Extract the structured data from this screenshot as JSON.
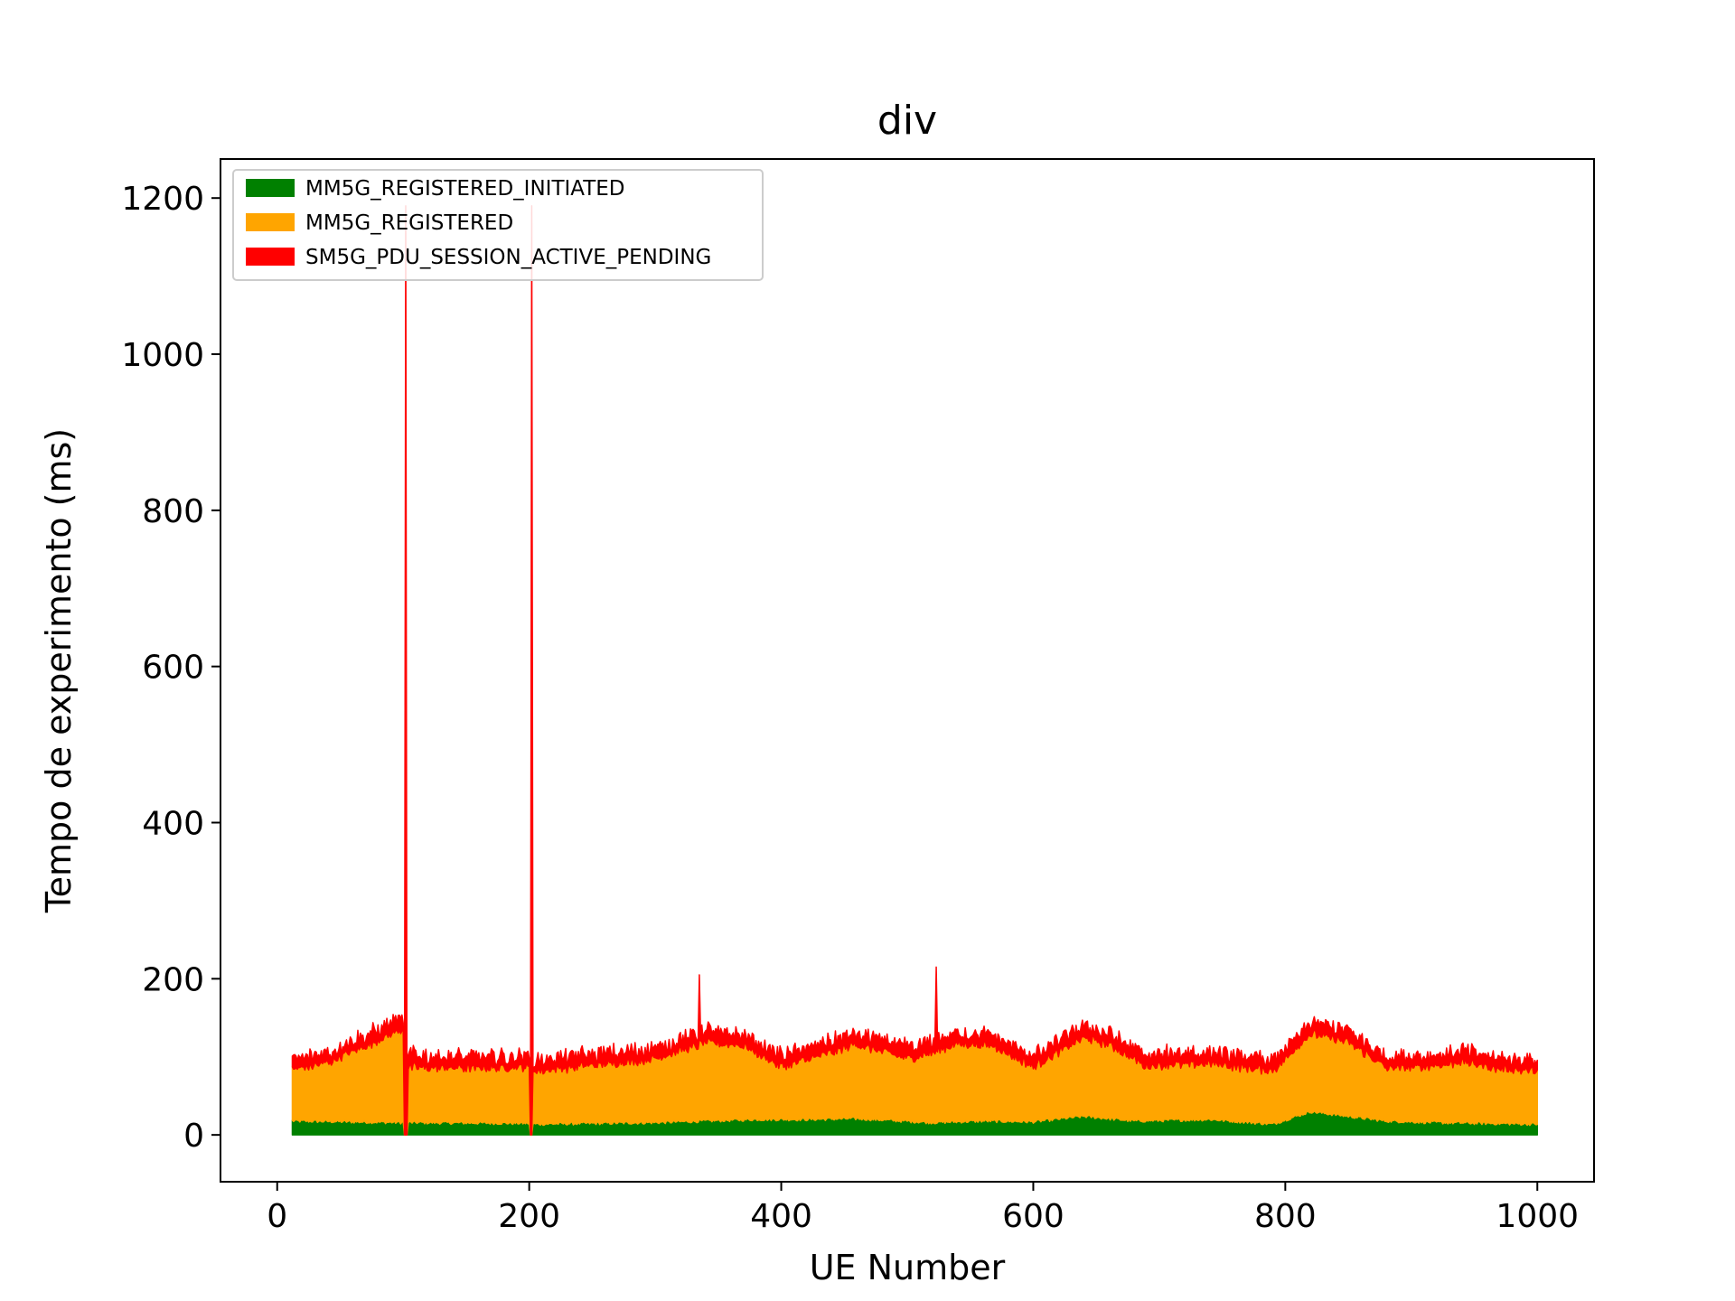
{
  "chart_data": {
    "type": "area",
    "title": "div",
    "xlabel": "UE Number",
    "ylabel": "Tempo de experimento (ms)",
    "xlim": [
      -45,
      1045
    ],
    "ylim": [
      -60,
      1250
    ],
    "xticks": [
      0,
      200,
      400,
      600,
      800,
      1000
    ],
    "yticks": [
      0,
      200,
      400,
      600,
      800,
      1000,
      1200
    ],
    "legend_position": "top-left",
    "grid": false,
    "stacked": true,
    "x_range": [
      12,
      1000
    ],
    "series": [
      {
        "name": "MM5G_REGISTERED_INITIATED",
        "color": "#008000",
        "profile": [
          [
            12,
            18
          ],
          [
            100,
            16
          ],
          [
            101,
            0
          ],
          [
            103,
            0
          ],
          [
            104,
            16
          ],
          [
            200,
            15
          ],
          [
            201,
            0
          ],
          [
            202,
            0
          ],
          [
            203,
            14
          ],
          [
            300,
            16
          ],
          [
            380,
            20
          ],
          [
            420,
            20
          ],
          [
            460,
            21
          ],
          [
            520,
            16
          ],
          [
            560,
            18
          ],
          [
            600,
            17
          ],
          [
            640,
            24
          ],
          [
            680,
            18
          ],
          [
            740,
            20
          ],
          [
            790,
            14
          ],
          [
            820,
            30
          ],
          [
            850,
            24
          ],
          [
            880,
            18
          ],
          [
            920,
            16
          ],
          [
            960,
            15
          ],
          [
            1000,
            14
          ]
        ]
      },
      {
        "name": "MM5G_REGISTERED",
        "color": "#FFA500",
        "profile": [
          [
            12,
            65
          ],
          [
            40,
            75
          ],
          [
            80,
            105
          ],
          [
            100,
            120
          ],
          [
            101,
            0
          ],
          [
            103,
            0
          ],
          [
            104,
            70
          ],
          [
            150,
            70
          ],
          [
            200,
            72
          ],
          [
            201,
            0
          ],
          [
            202,
            0
          ],
          [
            203,
            68
          ],
          [
            260,
            75
          ],
          [
            300,
            82
          ],
          [
            340,
            100
          ],
          [
            370,
            95
          ],
          [
            400,
            68
          ],
          [
            440,
            85
          ],
          [
            460,
            95
          ],
          [
            500,
            80
          ],
          [
            540,
            100
          ],
          [
            570,
            95
          ],
          [
            600,
            70
          ],
          [
            640,
            100
          ],
          [
            660,
            95
          ],
          [
            690,
            70
          ],
          [
            740,
            72
          ],
          [
            790,
            68
          ],
          [
            820,
            100
          ],
          [
            850,
            95
          ],
          [
            880,
            68
          ],
          [
            920,
            72
          ],
          [
            940,
            78
          ],
          [
            970,
            70
          ],
          [
            1000,
            68
          ]
        ]
      },
      {
        "name": "SM5G_PDU_SESSION_ACTIVE_PENDING",
        "color": "#FF0000",
        "profile": [
          [
            12,
            12
          ],
          [
            100,
            15
          ],
          [
            101,
            0
          ],
          [
            102,
            1080
          ],
          [
            103,
            0
          ],
          [
            104,
            15
          ],
          [
            200,
            14
          ],
          [
            201,
            0
          ],
          [
            202,
            1085
          ],
          [
            203,
            0
          ],
          [
            204,
            14
          ],
          [
            400,
            14
          ],
          [
            600,
            14
          ],
          [
            800,
            14
          ],
          [
            1000,
            14
          ]
        ]
      }
    ],
    "annotations": [
      {
        "x": 102,
        "y": 1190
      },
      {
        "x": 202,
        "y": 1190
      },
      {
        "x": 335,
        "y": 205
      },
      {
        "x": 523,
        "y": 215
      }
    ]
  }
}
